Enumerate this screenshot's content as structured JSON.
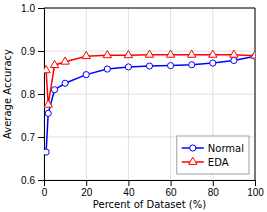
{
  "chart_data": {
    "type": "line",
    "x": [
      1,
      2,
      5,
      10,
      20,
      30,
      40,
      50,
      60,
      70,
      80,
      90,
      100
    ],
    "series": [
      {
        "name": "Normal",
        "color": "#0000ff",
        "marker": "circle",
        "values": [
          0.665,
          0.755,
          0.81,
          0.825,
          0.845,
          0.858,
          0.863,
          0.865,
          0.866,
          0.868,
          0.872,
          0.878,
          0.888
        ]
      },
      {
        "name": "EDA",
        "color": "#ff0000",
        "marker": "triangle",
        "values": [
          0.855,
          0.775,
          0.867,
          0.875,
          0.888,
          0.89,
          0.89,
          0.891,
          0.891,
          0.891,
          0.891,
          0.891,
          0.889
        ]
      }
    ],
    "xlabel": "Percent of Dataset (%)",
    "ylabel": "Average Accuracy",
    "xlim": [
      0,
      100
    ],
    "ylim": [
      0.6,
      1.0
    ],
    "xticks": [
      0,
      20,
      40,
      60,
      80,
      100
    ],
    "yticks": [
      0.6,
      0.7,
      0.8,
      0.9,
      {
        "value": 1.0,
        "label": "1.0"
      }
    ],
    "grid": true,
    "legend": "lower right"
  }
}
